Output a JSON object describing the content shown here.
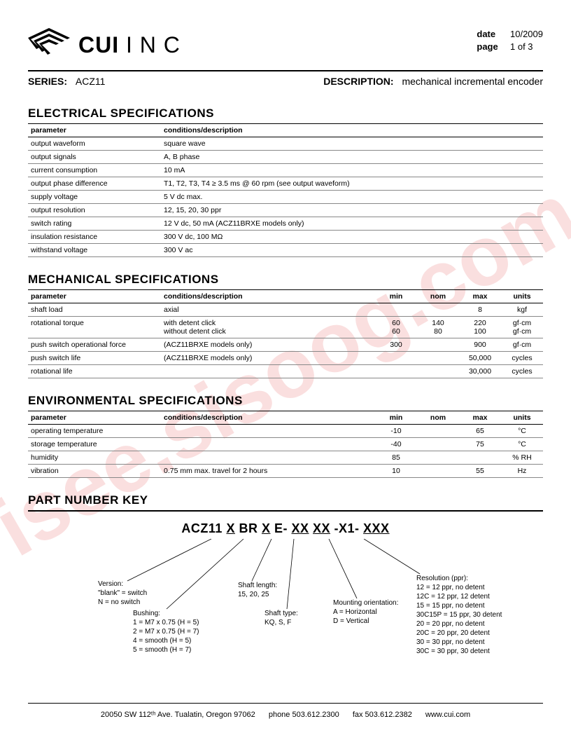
{
  "watermark": "isee.sisoog.com",
  "header": {
    "brand_bold": "CUI",
    "brand_light": " I N C",
    "date_label": "date",
    "date_value": "10/2009",
    "page_label": "page",
    "page_value": "1 of 3"
  },
  "series": {
    "series_label": "SERIES:",
    "series_value": "ACZ11",
    "desc_label": "DESCRIPTION:",
    "desc_value": "mechanical incremental encoder"
  },
  "electrical": {
    "title": "ELECTRICAL SPECIFICATIONS",
    "headers": {
      "param": "parameter",
      "cond": "conditions/description"
    },
    "rows": [
      {
        "param": "output waveform",
        "cond": "square wave"
      },
      {
        "param": "output signals",
        "cond": "A, B phase"
      },
      {
        "param": "current consumption",
        "cond": "10 mA"
      },
      {
        "param": "output phase difference",
        "cond": "T1, T2, T3, T4 ≥ 3.5 ms @ 60 rpm (see output waveform)"
      },
      {
        "param": "supply voltage",
        "cond": "5 V dc max."
      },
      {
        "param": "output resolution",
        "cond": "12, 15, 20, 30 ppr"
      },
      {
        "param": "switch rating",
        "cond": "12 V dc, 50 mA (ACZ11BRXE models only)"
      },
      {
        "param": "insulation resistance",
        "cond": "300 V dc, 100 MΩ"
      },
      {
        "param": "withstand voltage",
        "cond": "300 V ac"
      }
    ]
  },
  "mechanical": {
    "title": "MECHANICAL SPECIFICATIONS",
    "headers": {
      "param": "parameter",
      "cond": "conditions/description",
      "min": "min",
      "nom": "nom",
      "max": "max",
      "units": "units"
    },
    "rows": [
      {
        "param": "shaft load",
        "cond": "axial",
        "min": "",
        "nom": "",
        "max": "8",
        "units": "kgf"
      },
      {
        "param": "rotational torque",
        "cond": "with detent click\nwithout detent click",
        "min": "60\n60",
        "nom": "140\n80",
        "max": "220\n100",
        "units": "gf·cm\ngf·cm"
      },
      {
        "param": "push switch operational force",
        "cond": "(ACZ11BRXE models only)",
        "min": "300",
        "nom": "",
        "max": "900",
        "units": "gf·cm"
      },
      {
        "param": "push switch life",
        "cond": "(ACZ11BRXE models only)",
        "min": "",
        "nom": "",
        "max": "50,000",
        "units": "cycles"
      },
      {
        "param": "rotational life",
        "cond": "",
        "min": "",
        "nom": "",
        "max": "30,000",
        "units": "cycles"
      }
    ]
  },
  "environmental": {
    "title": "ENVIRONMENTAL SPECIFICATIONS",
    "headers": {
      "param": "parameter",
      "cond": "conditions/description",
      "min": "min",
      "nom": "nom",
      "max": "max",
      "units": "units"
    },
    "rows": [
      {
        "param": "operating temperature",
        "cond": "",
        "min": "-10",
        "nom": "",
        "max": "65",
        "units": "°C"
      },
      {
        "param": "storage temperature",
        "cond": "",
        "min": "-40",
        "nom": "",
        "max": "75",
        "units": "°C"
      },
      {
        "param": "humidity",
        "cond": "",
        "min": "85",
        "nom": "",
        "max": "",
        "units": "% RH"
      },
      {
        "param": "vibration",
        "cond": "0.75 mm max. travel for 2 hours",
        "min": "10",
        "nom": "",
        "max": "55",
        "units": "Hz"
      }
    ]
  },
  "part_number_key": {
    "title": "PART NUMBER KEY",
    "template_parts": [
      "ACZ11 ",
      "X",
      " BR ",
      "X",
      " E- ",
      "XX",
      " ",
      "XX",
      " -X1- ",
      "XXX"
    ],
    "labels": {
      "version": "Version:\n\"blank\" = switch\nN = no switch",
      "bushing": "Bushing:\n1 = M7 x 0.75 (H = 5)\n2 = M7 x 0.75 (H = 7)\n4 = smooth (H = 5)\n5 = smooth (H = 7)",
      "shaft_length": "Shaft length:\n15, 20, 25",
      "shaft_type": "Shaft type:\nKQ, S, F",
      "mounting": "Mounting orientation:\nA = Horizontal\nD = Vertical",
      "resolution": "Resolution (ppr):\n12 = 12 ppr, no detent\n12C = 12 ppr, 12 detent\n15 = 15 ppr, no detent\n30C15P = 15 ppr, 30 detent\n20 = 20 ppr, no detent\n20C = 20 ppr, 20 detent\n30 = 30 ppr, no detent\n30C = 30 ppr, 30 detent"
    }
  },
  "footer": {
    "address": "20050 SW 112ᵗʰ Ave. Tualatin, Oregon 97062",
    "phone": "phone 503.612.2300",
    "fax": "fax 503.612.2382",
    "url": "www.cui.com"
  }
}
